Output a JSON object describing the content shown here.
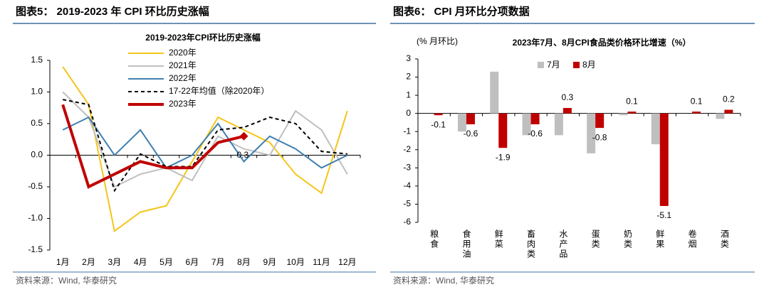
{
  "chart_data": [
    {
      "type": "line",
      "caption": "图表5：  2019-2023 年 CPI 环比历史涨幅",
      "title": "2019-2023年CPI环比历史涨幅",
      "source": "资料来源：Wind, 华泰研究",
      "categories": [
        "1月",
        "2月",
        "3月",
        "4月",
        "5月",
        "6月",
        "7月",
        "8月",
        "9月",
        "10月",
        "11月",
        "12月"
      ],
      "ylim": [
        -1.5,
        1.5
      ],
      "yticks": [
        -1.5,
        {
          "value": -1,
          "label": "-1.0"
        },
        -0.5,
        {
          "value": 0,
          "label": "0.0"
        },
        0.5,
        {
          "value": 1,
          "label": "1.0"
        },
        1.5
      ],
      "series": [
        {
          "name": "2020年",
          "color": "#f5c518",
          "values": [
            1.4,
            0.8,
            -1.2,
            -0.9,
            -0.8,
            -0.1,
            0.6,
            0.4,
            0.2,
            -0.3,
            -0.6,
            0.7
          ]
        },
        {
          "name": "2021年",
          "color": "#bfbfbf",
          "values": [
            1.0,
            0.6,
            -0.5,
            -0.3,
            -0.2,
            -0.4,
            0.3,
            0.1,
            0.0,
            0.7,
            0.4,
            -0.3
          ]
        },
        {
          "name": "2022年",
          "color": "#3f7fb0",
          "values": [
            0.4,
            0.6,
            0.0,
            0.4,
            -0.2,
            0.0,
            0.5,
            -0.1,
            0.3,
            0.1,
            -0.2,
            0.0
          ]
        },
        {
          "name": "17-22年均值（除2020年）",
          "color": "#000000",
          "style": "dashed",
          "values": [
            0.88,
            0.8,
            -0.56,
            0.02,
            -0.18,
            -0.18,
            0.4,
            0.44,
            0.6,
            0.5,
            0.06,
            0.02
          ]
        },
        {
          "name": "2023年",
          "color": "#c00000",
          "end_label": true,
          "values": [
            0.8,
            -0.5,
            -0.3,
            -0.1,
            -0.2,
            -0.2,
            0.2,
            0.3,
            null,
            null,
            null,
            null
          ]
        }
      ]
    },
    {
      "type": "bar",
      "caption": "图表6：  CPI 月环比分项数据",
      "title": "2023年7月、8月CPI食品类价格环比增速（%）",
      "ylabel": "(% 月环比)",
      "source": "资料来源：Wind, 华泰研究",
      "categories": [
        "粮食",
        "食用油",
        "鲜菜",
        "畜肉类",
        "水产品",
        "蛋类",
        "奶类",
        "鲜果",
        "卷烟",
        "酒类"
      ],
      "ylim": [
        -6,
        3
      ],
      "yticks": [
        -6,
        -5,
        -4,
        -3,
        -2,
        -1,
        0,
        1,
        2,
        3
      ],
      "series": [
        {
          "name": "7月",
          "color": "#bfbfbf",
          "values": [
            0.0,
            -1.0,
            2.3,
            -1.2,
            -1.2,
            -2.2,
            -0.1,
            -1.7,
            0.0,
            -0.3
          ]
        },
        {
          "name": "8月",
          "color": "#c00000",
          "data_labels": true,
          "values": [
            -0.1,
            -0.6,
            -1.9,
            -0.6,
            0.3,
            -0.8,
            0.1,
            -5.1,
            0.1,
            0.2
          ]
        }
      ]
    }
  ]
}
